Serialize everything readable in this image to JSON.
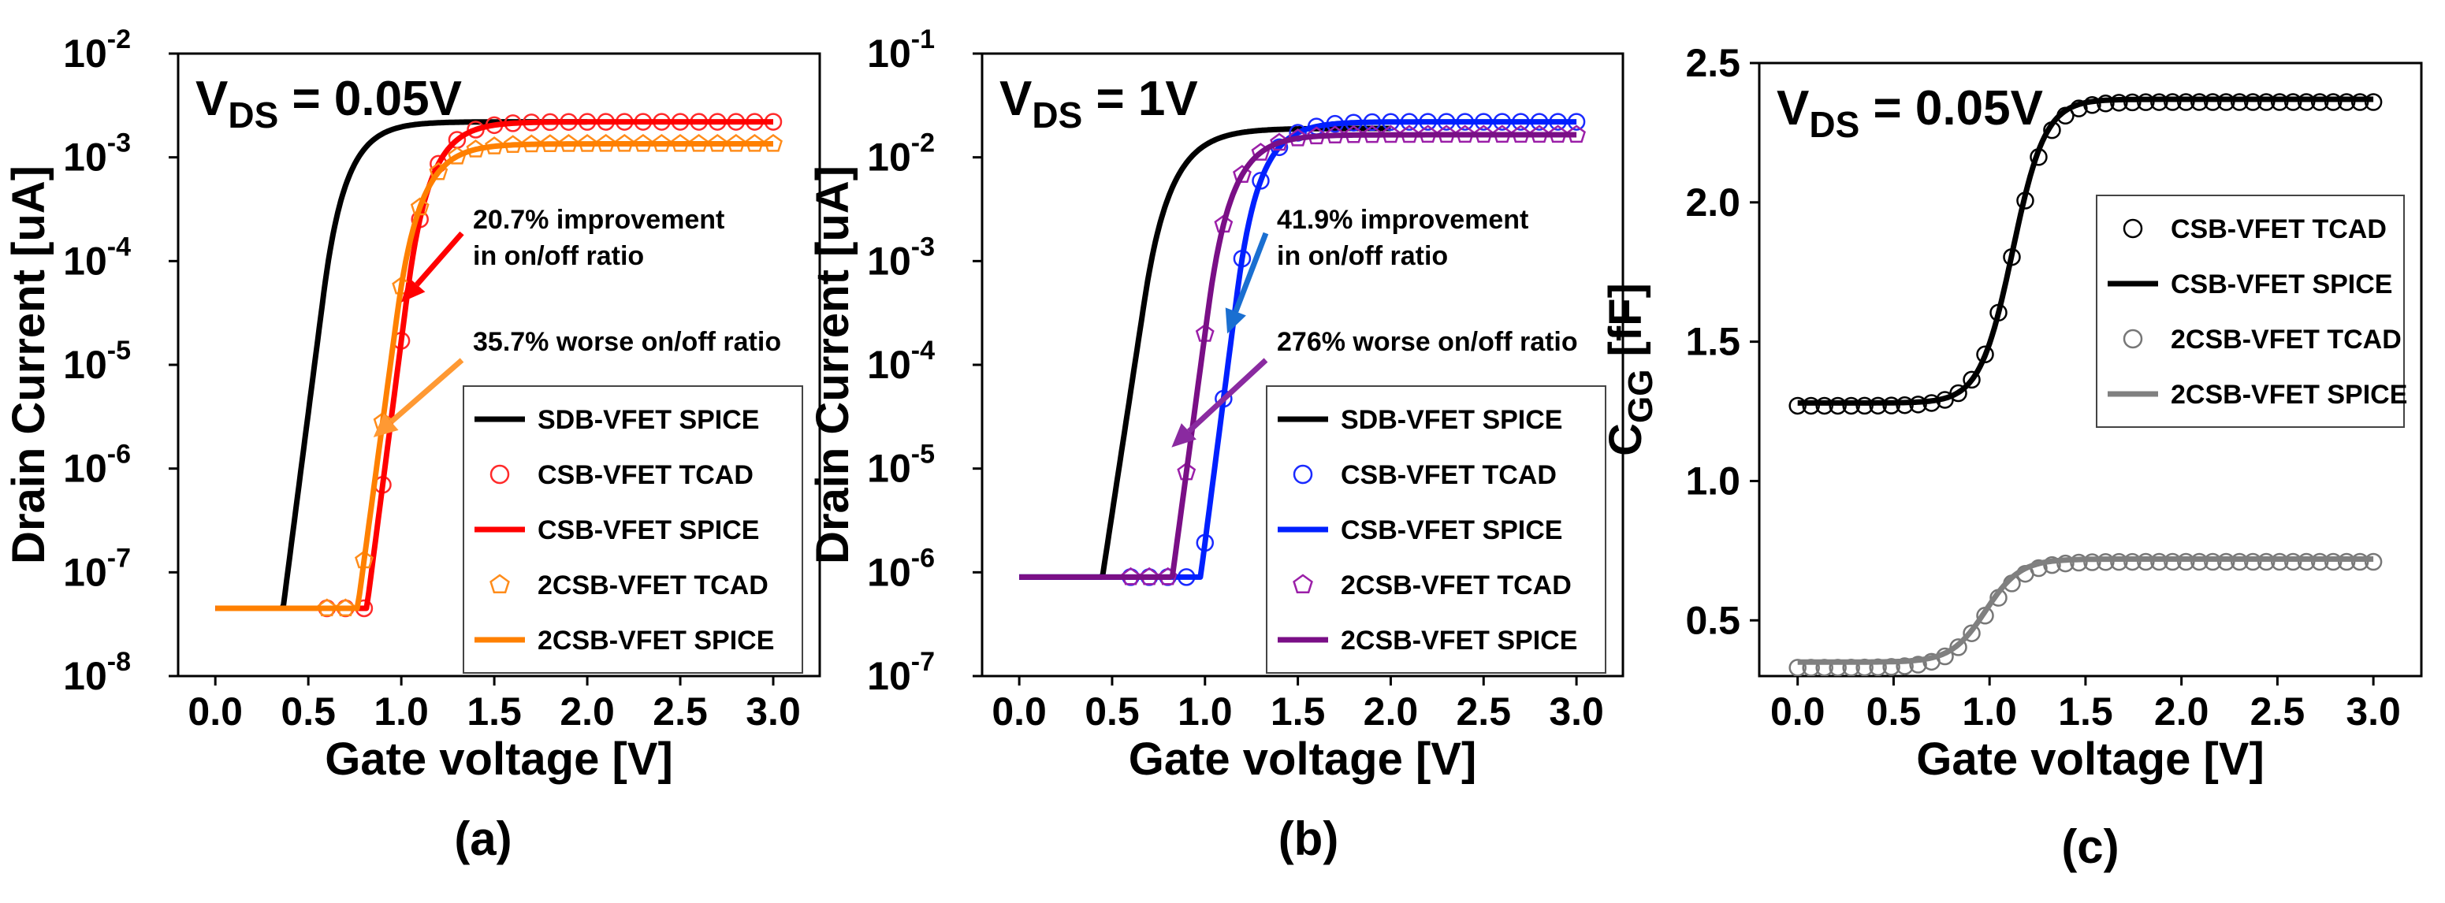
{
  "chart_data": [
    {
      "type": "line",
      "panel_label": "(a)",
      "vds_label": {
        "main": "V",
        "sub": "DS",
        "rest": " = 0.05V"
      },
      "xlabel": "Gate voltage [V]",
      "ylabel": "Drain Current [uA]",
      "yscale": "log",
      "xlim": [
        -0.2,
        3.25
      ],
      "ylim_exp": [
        -8,
        -2
      ],
      "x_ticks": [
        "0.0",
        "0.5",
        "1.0",
        "1.5",
        "2.0",
        "2.5",
        "3.0"
      ],
      "y_ticks": [
        {
          "base": "10",
          "exp": "-8"
        },
        {
          "base": "10",
          "exp": "-7"
        },
        {
          "base": "10",
          "exp": "-6"
        },
        {
          "base": "10",
          "exp": "-5"
        },
        {
          "base": "10",
          "exp": "-4"
        },
        {
          "base": "10",
          "exp": "-3"
        },
        {
          "base": "10",
          "exp": "-2"
        }
      ],
      "series": [
        {
          "name": "SDB-VFET SPICE",
          "kind": "line",
          "color": "#000000",
          "model": {
            "ioff": 4.5e-08,
            "vth": 0.55,
            "n": 0.072,
            "isat": 0.0022,
            "k": 2.0,
            "vmin": 0.0,
            "vmax": 2.0
          }
        },
        {
          "name": "CSB-VFET TCAD",
          "kind": "circle",
          "color": "#ff2a2a",
          "model": {
            "ioff": 4.5e-08,
            "vth": 1.0,
            "n": 0.072,
            "isat": 0.0022,
            "k": 2.0,
            "vmin": 0.0,
            "vmax": 3.0
          }
        },
        {
          "name": "CSB-VFET SPICE",
          "kind": "line",
          "color": "#ff0000",
          "model": {
            "ioff": 4.5e-08,
            "vth": 1.0,
            "n": 0.072,
            "isat": 0.0022,
            "k": 2.0,
            "vmin": 0.0,
            "vmax": 3.0
          }
        },
        {
          "name": "2CSB-VFET TCAD",
          "kind": "pentagon",
          "color": "#ff8c1a",
          "model": {
            "ioff": 4.5e-08,
            "vth": 0.95,
            "n": 0.075,
            "isat": 0.00135,
            "k": 2.0,
            "vmin": 0.0,
            "vmax": 3.0
          }
        },
        {
          "name": "2CSB-VFET SPICE",
          "kind": "line",
          "color": "#ff8000",
          "model": {
            "ioff": 4.5e-08,
            "vth": 0.95,
            "n": 0.075,
            "isat": 0.00135,
            "k": 2.0,
            "vmin": 0.0,
            "vmax": 3.0
          }
        }
      ],
      "annotations": [
        {
          "lines": [
            "20.7% improvement",
            "in on/off ratio"
          ],
          "color": "#ff0000",
          "tip": [
            1.0,
            4e-05
          ]
        },
        {
          "lines": [
            "35.7% worse on/off ratio"
          ],
          "color": "#ff9933",
          "tip": [
            0.85,
            2e-06
          ]
        }
      ]
    },
    {
      "type": "line",
      "panel_label": "(b)",
      "vds_label": {
        "main": "V",
        "sub": "DS",
        "rest": " = 1V"
      },
      "xlabel": "Gate voltage [V]",
      "ylabel": "Drain Current [uA]",
      "yscale": "log",
      "xlim": [
        -0.2,
        3.25
      ],
      "ylim_exp": [
        -7,
        -1
      ],
      "x_ticks": [
        "0.0",
        "0.5",
        "1.0",
        "1.5",
        "2.0",
        "2.5",
        "3.0"
      ],
      "y_ticks": [
        {
          "base": "10",
          "exp": "-7"
        },
        {
          "base": "10",
          "exp": "-6"
        },
        {
          "base": "10",
          "exp": "-5"
        },
        {
          "base": "10",
          "exp": "-4"
        },
        {
          "base": "10",
          "exp": "-3"
        },
        {
          "base": "10",
          "exp": "-2"
        },
        {
          "base": "10",
          "exp": "-1"
        }
      ],
      "series": [
        {
          "name": "SDB-VFET SPICE",
          "kind": "line",
          "color": "#000000",
          "model": {
            "ioff": 9e-07,
            "vth": 0.65,
            "n": 0.085,
            "isat": 0.019,
            "k": 1.8,
            "vmin": 0.0,
            "vmax": 2.0
          }
        },
        {
          "name": "CSB-VFET TCAD",
          "kind": "circle",
          "color": "#1a2aff",
          "model": {
            "ioff": 9e-07,
            "vth": 1.15,
            "n": 0.072,
            "isat": 0.022,
            "k": 1.8,
            "vmin": 0.0,
            "vmax": 3.0
          }
        },
        {
          "name": "CSB-VFET SPICE",
          "kind": "line",
          "color": "#0020ff",
          "model": {
            "ioff": 9e-07,
            "vth": 1.15,
            "n": 0.072,
            "isat": 0.022,
            "k": 1.8,
            "vmin": 0.0,
            "vmax": 3.0
          }
        },
        {
          "name": "2CSB-VFET TCAD",
          "kind": "pentagon",
          "color": "#9b1fa8",
          "model": {
            "ioff": 9e-07,
            "vth": 1.0,
            "n": 0.075,
            "isat": 0.0165,
            "k": 1.8,
            "vmin": 0.0,
            "vmax": 3.0
          }
        },
        {
          "name": "2CSB-VFET SPICE",
          "kind": "line",
          "color": "#7a0f86",
          "model": {
            "ioff": 9e-07,
            "vth": 1.0,
            "n": 0.075,
            "isat": 0.0165,
            "k": 1.8,
            "vmin": 0.0,
            "vmax": 3.0
          }
        }
      ],
      "annotations": [
        {
          "lines": [
            "41.9% improvement",
            "in on/off ratio"
          ],
          "color": "#1a6fd1",
          "tip": [
            1.12,
            0.0002
          ]
        },
        {
          "lines": [
            "276% worse on/off ratio"
          ],
          "color": "#8a2aa0",
          "tip": [
            0.82,
            1.6e-05
          ]
        }
      ]
    },
    {
      "type": "line",
      "panel_label": "(c)",
      "vds_label": {
        "main": "V",
        "sub": "DS",
        "rest": " = 0.05V"
      },
      "xlabel": "Gate voltage [V]",
      "ylabel_main": "C",
      "ylabel_sub": "GG",
      "ylabel_rest": " [fF]",
      "yscale": "linear",
      "xlim": [
        -0.2,
        3.25
      ],
      "ylim": [
        0.3,
        2.5
      ],
      "x_ticks": [
        "0.0",
        "0.5",
        "1.0",
        "1.5",
        "2.0",
        "2.5",
        "3.0"
      ],
      "y_ticks": [
        "0.5",
        "1.0",
        "1.5",
        "2.0",
        "2.5"
      ],
      "series": [
        {
          "name": "CSB-VFET TCAD",
          "kind": "circle",
          "color": "#000000",
          "model": {
            "c0": 1.27,
            "c1": 2.36,
            "v0": 1.12,
            "w": 0.09,
            "tail": 0.0
          }
        },
        {
          "name": "CSB-VFET SPICE",
          "kind": "line",
          "color": "#000000",
          "model": {
            "c0": 1.28,
            "c1": 2.37,
            "v0": 1.12,
            "w": 0.085,
            "tail": 0.0
          }
        },
        {
          "name": "2CSB-VFET TCAD",
          "kind": "circle",
          "color": "#777777",
          "model": {
            "c0": 0.33,
            "c1": 0.71,
            "v0": 0.98,
            "w": 0.1,
            "tail": 0.0
          }
        },
        {
          "name": "2CSB-VFET SPICE",
          "kind": "line",
          "color": "#808080",
          "model": {
            "c0": 0.35,
            "c1": 0.72,
            "v0": 0.98,
            "w": 0.09,
            "tail": 0.0
          }
        }
      ]
    }
  ]
}
